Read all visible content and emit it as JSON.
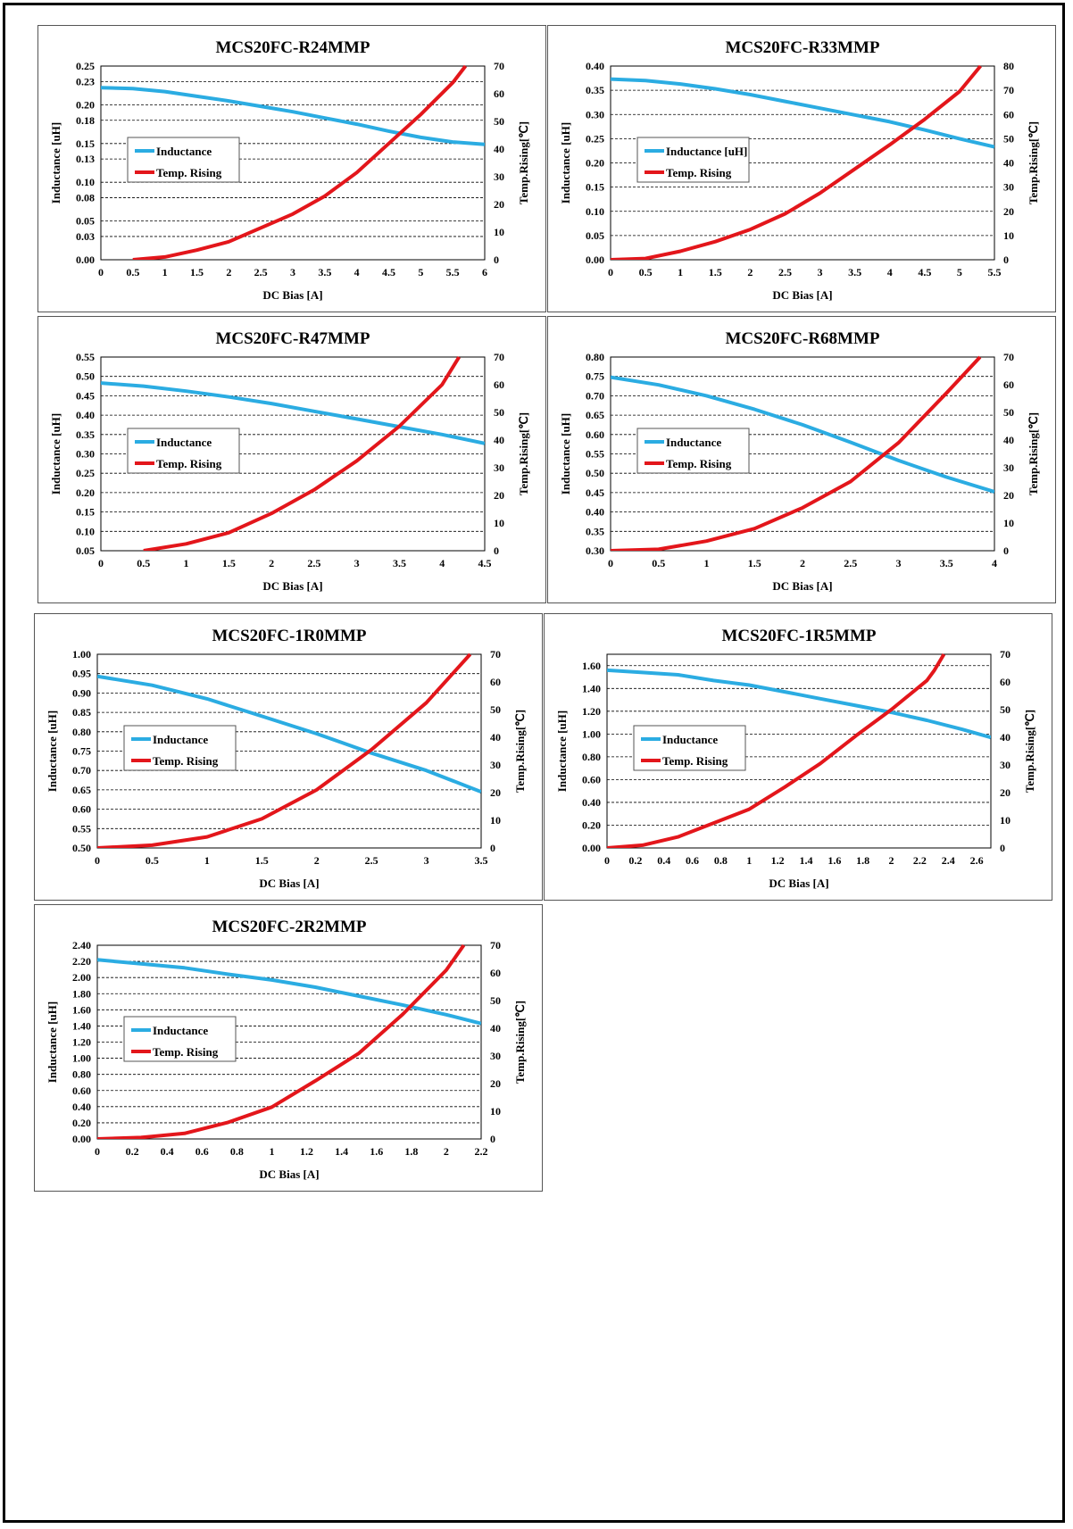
{
  "colors": {
    "inductance": "#2bace2",
    "temp_rising": "#e3161b",
    "grid": "#000000"
  },
  "chart_data": [
    {
      "type": "line",
      "title": "MCS20FC-R24MMP",
      "xlabel": "DC Bias [A]",
      "ylabel": "Inductance [uH]",
      "y2label": "Temp.Rising[℃]",
      "xlim": [
        0,
        6
      ],
      "xticks": [
        "0",
        "0.5",
        "1",
        "1.5",
        "2",
        "2.5",
        "3",
        "3.5",
        "4",
        "4.5",
        "5",
        "5.5",
        "6"
      ],
      "ylim": [
        0,
        0.25
      ],
      "yticks": [
        "0.00",
        "0.03",
        "0.05",
        "0.08",
        "0.10",
        "0.13",
        "0.15",
        "0.18",
        "0.20",
        "0.23",
        "0.25"
      ],
      "y2lim": [
        0,
        70
      ],
      "y2ticks": [
        "0",
        "10",
        "20",
        "30",
        "40",
        "50",
        "60",
        "70"
      ],
      "legend": "center-left",
      "grid": true,
      "series": [
        {
          "name": "Inductance",
          "axis": "left",
          "x": [
            0,
            0.5,
            1,
            1.5,
            2,
            2.5,
            3,
            3.5,
            4,
            4.5,
            5,
            5.5,
            6
          ],
          "values": [
            0.222,
            0.221,
            0.217,
            0.211,
            0.205,
            0.198,
            0.191,
            0.183,
            0.175,
            0.166,
            0.158,
            0.152,
            0.149
          ]
        },
        {
          "name": "Temp. Rising",
          "axis": "right",
          "x": [
            0.5,
            1,
            1.5,
            2,
            2.5,
            3,
            3.5,
            4,
            4.5,
            5,
            5.5,
            5.7
          ],
          "values": [
            0,
            1,
            3.5,
            6.5,
            11.5,
            16.5,
            23,
            31.5,
            42,
            52.5,
            64,
            70
          ]
        }
      ]
    },
    {
      "type": "line",
      "title": "MCS20FC-R33MMP",
      "xlabel": "DC Bias [A]",
      "ylabel": "Inductance [uH]",
      "y2label": "Temp.Rising[℃]",
      "xlim": [
        0,
        5.5
      ],
      "xticks": [
        "0",
        "0.5",
        "1",
        "1.5",
        "2",
        "2.5",
        "3",
        "3.5",
        "4",
        "4.5",
        "5",
        "5.5"
      ],
      "ylim": [
        0,
        0.4
      ],
      "yticks": [
        "0.00",
        "0.05",
        "0.10",
        "0.15",
        "0.20",
        "0.25",
        "0.30",
        "0.35",
        "0.40"
      ],
      "y2lim": [
        0,
        80
      ],
      "y2ticks": [
        "0",
        "10",
        "20",
        "30",
        "40",
        "50",
        "60",
        "70",
        "80"
      ],
      "legend": "center-left",
      "grid": true,
      "series": [
        {
          "name": "Inductance [uH]",
          "axis": "left",
          "x": [
            0,
            0.5,
            1,
            1.5,
            2,
            2.5,
            3,
            3.5,
            4,
            4.5,
            5,
            5.5
          ],
          "values": [
            0.373,
            0.37,
            0.363,
            0.353,
            0.341,
            0.327,
            0.313,
            0.299,
            0.285,
            0.268,
            0.25,
            0.233
          ]
        },
        {
          "name": "Temp. Rising",
          "axis": "right",
          "x": [
            0,
            0.5,
            1,
            1.5,
            2,
            2.5,
            3,
            3.5,
            4,
            4.5,
            5,
            5.3
          ],
          "values": [
            0,
            0.5,
            3.5,
            7.5,
            12.5,
            19,
            27.5,
            37.5,
            47.5,
            58,
            69.5,
            80
          ]
        }
      ]
    },
    {
      "type": "line",
      "title": "MCS20FC-R47MMP",
      "xlabel": "DC Bias [A]",
      "ylabel": "Inductance [uH]",
      "y2label": "Temp.Rising[℃]",
      "xlim": [
        0,
        4.5
      ],
      "xticks": [
        "0",
        "0.5",
        "1",
        "1.5",
        "2",
        "2.5",
        "3",
        "3.5",
        "4",
        "4.5"
      ],
      "ylim": [
        0.05,
        0.55
      ],
      "yticks": [
        "0.05",
        "0.10",
        "0.15",
        "0.20",
        "0.25",
        "0.30",
        "0.35",
        "0.40",
        "0.45",
        "0.50",
        "0.55"
      ],
      "y2lim": [
        0,
        70
      ],
      "y2ticks": [
        "0",
        "10",
        "20",
        "30",
        "40",
        "50",
        "60",
        "70"
      ],
      "legend": "center-left",
      "grid": true,
      "series": [
        {
          "name": "Inductance",
          "axis": "left",
          "x": [
            0,
            0.5,
            1,
            1.5,
            2,
            2.5,
            3,
            3.5,
            4,
            4.5
          ],
          "values": [
            0.483,
            0.475,
            0.462,
            0.447,
            0.43,
            0.41,
            0.39,
            0.37,
            0.35,
            0.327
          ]
        },
        {
          "name": "Temp. Rising",
          "axis": "right",
          "x": [
            0.5,
            1,
            1.5,
            2,
            2.5,
            3,
            3.5,
            4,
            4.2
          ],
          "values": [
            0,
            2.5,
            6.5,
            13.5,
            22,
            32.5,
            45,
            60,
            70
          ]
        }
      ]
    },
    {
      "type": "line",
      "title": "MCS20FC-R68MMP",
      "xlabel": "DC Bias [A]",
      "ylabel": "Inductance [uH]",
      "y2label": "Temp.Rising[℃]",
      "xlim": [
        0,
        4
      ],
      "xticks": [
        "0",
        "0.5",
        "1",
        "1.5",
        "2",
        "2.5",
        "3",
        "3.5",
        "4"
      ],
      "ylim": [
        0.3,
        0.8
      ],
      "yticks": [
        "0.30",
        "0.35",
        "0.40",
        "0.45",
        "0.50",
        "0.55",
        "0.60",
        "0.65",
        "0.70",
        "0.75",
        "0.80"
      ],
      "y2lim": [
        0,
        70
      ],
      "y2ticks": [
        "0",
        "10",
        "20",
        "30",
        "40",
        "50",
        "60",
        "70"
      ],
      "legend": "center-left",
      "grid": true,
      "series": [
        {
          "name": "Inductance",
          "axis": "left",
          "x": [
            0,
            0.5,
            1,
            1.5,
            2,
            2.5,
            3,
            3.5,
            4
          ],
          "values": [
            0.748,
            0.728,
            0.7,
            0.665,
            0.625,
            0.58,
            0.533,
            0.49,
            0.452
          ]
        },
        {
          "name": "Temp. Rising",
          "axis": "right",
          "x": [
            0,
            0.5,
            1,
            1.5,
            2,
            2.5,
            3,
            3.5,
            3.85
          ],
          "values": [
            0,
            0.5,
            3.5,
            8,
            15.5,
            25,
            39,
            57,
            70
          ]
        }
      ]
    },
    {
      "type": "line",
      "title": "MCS20FC-1R0MMP",
      "xlabel": "DC Bias [A]",
      "ylabel": "Inductance [uH]",
      "y2label": "Temp.Rising[℃]",
      "xlim": [
        0,
        3.5
      ],
      "xticks": [
        "0",
        "0.5",
        "1",
        "1.5",
        "2",
        "2.5",
        "3",
        "3.5"
      ],
      "ylim": [
        0.5,
        1.0
      ],
      "yticks": [
        "0.50",
        "0.55",
        "0.60",
        "0.65",
        "0.70",
        "0.75",
        "0.80",
        "0.85",
        "0.90",
        "0.95",
        "1.00"
      ],
      "y2lim": [
        0,
        70
      ],
      "y2ticks": [
        "0",
        "10",
        "20",
        "30",
        "40",
        "50",
        "60",
        "70"
      ],
      "legend": "center-left",
      "grid": true,
      "series": [
        {
          "name": "Inductance",
          "axis": "left",
          "x": [
            0,
            0.5,
            1,
            1.5,
            2,
            2.5,
            3,
            3.5
          ],
          "values": [
            0.943,
            0.92,
            0.885,
            0.84,
            0.795,
            0.745,
            0.7,
            0.645
          ]
        },
        {
          "name": "Temp. Rising",
          "axis": "right",
          "x": [
            0,
            0.5,
            1,
            1.5,
            2,
            2.5,
            3,
            3.4
          ],
          "values": [
            0,
            1,
            4,
            10.5,
            21,
            35.5,
            52.5,
            70
          ]
        }
      ]
    },
    {
      "type": "line",
      "title": "MCS20FC-1R5MMP",
      "xlabel": "DC Bias [A]",
      "ylabel": "Inductance [uH]",
      "y2label": "Temp.Rising[℃]",
      "xlim": [
        0,
        2.7
      ],
      "xticks": [
        "0",
        "0.2",
        "0.4",
        "0.6",
        "0.8",
        "1",
        "1.2",
        "1.4",
        "1.6",
        "1.8",
        "2",
        "2.2",
        "2.4",
        "2.6"
      ],
      "ylim": [
        0,
        1.7
      ],
      "yticks": [
        "0.00",
        "0.20",
        "0.40",
        "0.60",
        "0.80",
        "1.00",
        "1.20",
        "1.40",
        "1.60"
      ],
      "y2lim": [
        0,
        70
      ],
      "y2ticks": [
        "0",
        "10",
        "20",
        "30",
        "40",
        "50",
        "60",
        "70"
      ],
      "legend": "center-left",
      "grid": true,
      "series": [
        {
          "name": "Inductance",
          "axis": "left",
          "x": [
            0,
            0.25,
            0.5,
            0.75,
            1,
            1.25,
            1.5,
            1.75,
            2,
            2.25,
            2.5,
            2.7
          ],
          "values": [
            1.56,
            1.54,
            1.52,
            1.47,
            1.43,
            1.37,
            1.31,
            1.25,
            1.19,
            1.12,
            1.04,
            0.97
          ]
        },
        {
          "name": "Temp. Rising",
          "axis": "right",
          "x": [
            0,
            0.25,
            0.5,
            0.75,
            1,
            1.25,
            1.5,
            1.75,
            2,
            2.25,
            2.3,
            2.37
          ],
          "values": [
            0,
            1,
            4,
            9,
            14,
            22,
            30.5,
            40.5,
            50,
            60.5,
            64,
            70
          ]
        }
      ]
    },
    {
      "type": "line",
      "title": "MCS20FC-2R2MMP",
      "xlabel": "DC Bias [A]",
      "ylabel": "Inductance [uH]",
      "y2label": "Temp.Rising[℃]",
      "xlim": [
        0,
        2.2
      ],
      "xticks": [
        "0",
        "0.2",
        "0.4",
        "0.6",
        "0.8",
        "1",
        "1.2",
        "1.4",
        "1.6",
        "1.8",
        "2",
        "2.2"
      ],
      "ylim": [
        0,
        2.4
      ],
      "yticks": [
        "0.00",
        "0.20",
        "0.40",
        "0.60",
        "0.80",
        "1.00",
        "1.20",
        "1.40",
        "1.60",
        "1.80",
        "2.00",
        "2.20",
        "2.40"
      ],
      "y2lim": [
        0,
        70
      ],
      "y2ticks": [
        "0",
        "10",
        "20",
        "30",
        "40",
        "50",
        "60",
        "70"
      ],
      "legend": "center-left",
      "grid": true,
      "series": [
        {
          "name": "Inductance",
          "axis": "left",
          "x": [
            0,
            0.25,
            0.5,
            0.75,
            1,
            1.25,
            1.5,
            1.75,
            2,
            2.2
          ],
          "values": [
            2.22,
            2.17,
            2.12,
            2.04,
            1.97,
            1.88,
            1.77,
            1.66,
            1.54,
            1.43
          ]
        },
        {
          "name": "Temp. Rising",
          "axis": "right",
          "x": [
            0,
            0.25,
            0.5,
            0.75,
            1,
            1.25,
            1.5,
            1.75,
            2,
            2.1
          ],
          "values": [
            0,
            0.5,
            2,
            6,
            11.5,
            21,
            31,
            45,
            61,
            70
          ]
        }
      ]
    }
  ]
}
